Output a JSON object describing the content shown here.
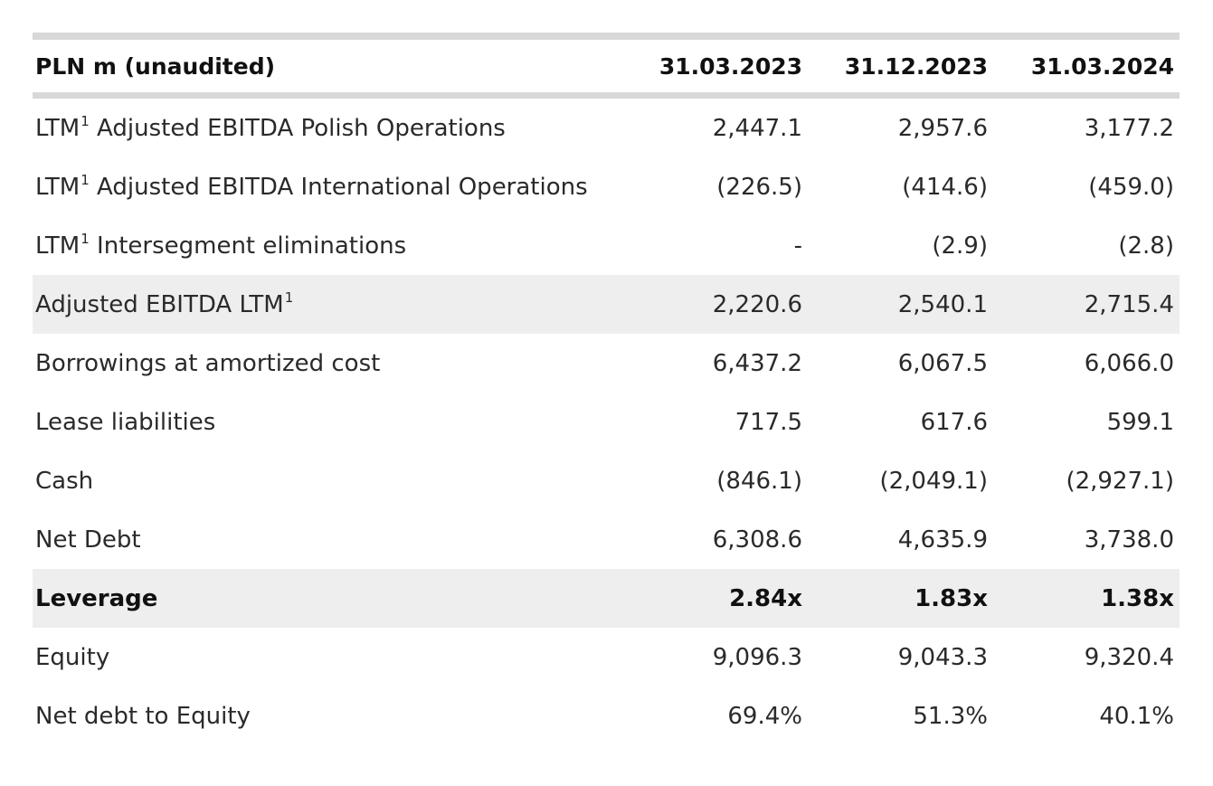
{
  "table": {
    "header": {
      "label": "PLN m (unaudited)",
      "col1": "31.03.2023",
      "col2": "31.12.2023",
      "col3": "31.03.2024"
    },
    "rows": [
      {
        "label": "LTM",
        "sup": "1",
        "label_rest": " Adjusted EBITDA Polish Operations",
        "v1": "2,447.1",
        "v2": "2,957.6",
        "v3": "3,177.2"
      },
      {
        "label": "LTM",
        "sup": "1",
        "label_rest": " Adjusted EBITDA International Operations",
        "v1": "(226.5)",
        "v2": "(414.6)",
        "v3": "(459.0)"
      },
      {
        "label": "LTM",
        "sup": "1",
        "label_rest": " Intersegment eliminations",
        "v1": "-",
        "v2": "(2.9)",
        "v3": "(2.8)"
      },
      {
        "label": "Adjusted EBITDA LTM",
        "sup": "1",
        "v1": "2,220.6",
        "v2": "2,540.1",
        "v3": "2,715.4"
      },
      {
        "label": "Borrowings at amortized cost",
        "v1": "6,437.2",
        "v2": "6,067.5",
        "v3": "6,066.0"
      },
      {
        "label": "Lease liabilities",
        "v1": "717.5",
        "v2": "617.6",
        "v3": "599.1"
      },
      {
        "label": "Cash",
        "v1": "(846.1)",
        "v2": "(2,049.1)",
        "v3": "(2,927.1)"
      },
      {
        "label": "Net Debt",
        "v1": "6,308.6",
        "v2": "4,635.9",
        "v3": "3,738.0"
      },
      {
        "label": "Leverage",
        "v1": "2.84x",
        "v2": "1.83x",
        "v3": "1.38x"
      },
      {
        "label": "Equity",
        "v1": "9,096.3",
        "v2": "9,043.3",
        "v3": "9,320.4"
      },
      {
        "label": "Net debt to Equity",
        "v1": "69.4%",
        "v2": "51.3%",
        "v3": "40.1%"
      }
    ]
  },
  "colors": {
    "rule": "#d8d8d8",
    "shade": "#eeeeee",
    "text": "#2a2a2a"
  }
}
